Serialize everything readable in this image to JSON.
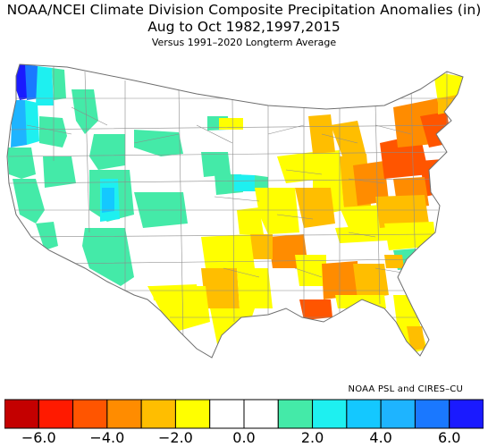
{
  "title": {
    "line1": "NOAA/NCEI Climate Division Composite Precipitation Anomalies (in)",
    "line2": "Aug to Oct  1982,1997,2015",
    "line3": "Versus 1991–2020 Longterm Average"
  },
  "credit": "NOAA PSL and CIRES–CU",
  "colors": {
    "background": "#ffffff",
    "border": "#8c8c8c",
    "scale": [
      "#c40000",
      "#ff1a00",
      "#ff5500",
      "#ff8c00",
      "#ffbe00",
      "#ffff00",
      "#ffffff",
      "#ffffff",
      "#44eaa8",
      "#1ef0f0",
      "#14c8ff",
      "#1eb4ff",
      "#1a78ff",
      "#1a1aff"
    ]
  },
  "legend": {
    "bins": 14,
    "range": [
      -7.0,
      7.0
    ],
    "tick_labels": [
      "−6.0",
      "−4.0",
      "−2.0",
      "0.0",
      "2.0",
      "4.0",
      "6.0"
    ]
  },
  "regions": [
    {
      "name": "Washington coast",
      "anomaly": 5.5
    },
    {
      "name": "Oregon coast",
      "anomaly": 3.5
    },
    {
      "name": "Southeast Louisiana",
      "anomaly": -4.5
    },
    {
      "name": "New Jersey",
      "anomaly": -3.5
    },
    {
      "name": "Arkansas",
      "anomaly": -2.5
    },
    {
      "name": "Central Texas",
      "anomaly": -2.5
    },
    {
      "name": "Utah",
      "anomaly": 2.0
    }
  ]
}
